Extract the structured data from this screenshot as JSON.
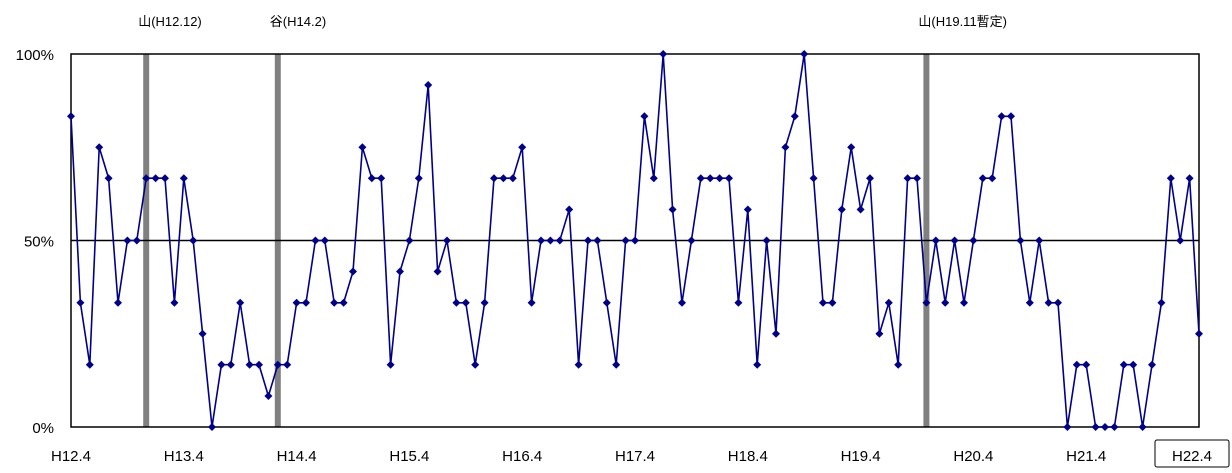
{
  "chart_data": {
    "type": "line",
    "title": "",
    "xlabel": "",
    "ylabel": "",
    "ylim": [
      0,
      100
    ],
    "y_ticks": [
      "0%",
      "50%",
      "100%"
    ],
    "x_tick_labels": [
      "H12.4",
      "H13.4",
      "H14.4",
      "H15.4",
      "H16.4",
      "H17.4",
      "H18.4",
      "H19.4",
      "H20.4",
      "H21.4",
      "H22.4"
    ],
    "x_tick_index_step": 12,
    "reference_lines": [
      {
        "label": "山(H12.12)",
        "index": 8
      },
      {
        "label": "谷(H14.2)",
        "index": 22
      },
      {
        "label": "山(H19.11暫定)",
        "index": 91
      }
    ],
    "colors": {
      "series": "#00008B",
      "marker": "#00008B",
      "reference_line": "#808080",
      "axis": "#000000"
    },
    "grid": false,
    "series": [
      {
        "values": [
          83.3,
          33.3,
          16.7,
          75,
          66.7,
          33.3,
          50,
          50,
          66.7,
          66.7,
          66.7,
          33.3,
          66.7,
          50,
          25,
          0,
          16.7,
          16.7,
          33.3,
          16.7,
          16.7,
          8.3,
          16.7,
          16.7,
          33.3,
          33.3,
          50,
          50,
          33.3,
          33.3,
          41.7,
          75,
          66.7,
          66.7,
          16.7,
          41.7,
          50,
          66.7,
          91.7,
          41.7,
          50,
          33.3,
          33.3,
          16.7,
          33.3,
          66.7,
          66.7,
          66.7,
          75,
          33.3,
          50,
          50,
          50,
          58.3,
          16.7,
          50,
          50,
          33.3,
          16.7,
          50,
          50,
          83.3,
          66.7,
          100,
          58.3,
          33.3,
          50,
          66.7,
          66.7,
          66.7,
          66.7,
          33.3,
          58.3,
          16.7,
          50,
          25,
          75,
          83.3,
          100,
          66.7,
          33.3,
          33.3,
          58.3,
          75,
          58.3,
          66.7,
          25,
          33.3,
          16.7,
          66.7,
          66.7,
          33.3,
          50,
          33.3,
          50,
          33.3,
          50,
          66.7,
          66.7,
          83.3,
          83.3,
          50,
          33.3,
          50,
          33.3,
          33.3,
          0,
          16.7,
          16.7,
          0,
          0,
          0,
          16.7,
          16.7,
          0,
          16.7,
          33.3,
          66.7,
          50,
          66.7,
          25
        ]
      }
    ]
  }
}
